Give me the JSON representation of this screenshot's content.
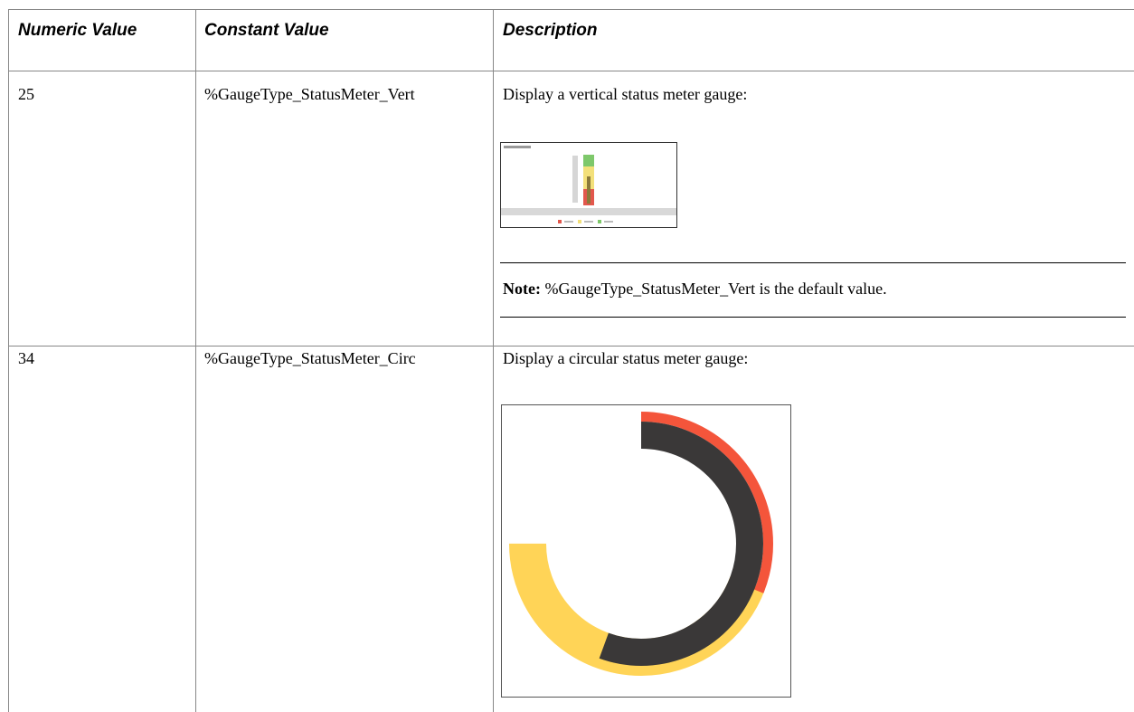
{
  "table": {
    "headers": [
      "Numeric Value",
      "Constant Value",
      "Description"
    ],
    "rows": [
      [
        25,
        "%GaugeType_StatusMeter_Vert",
        "Display a vertical status meter gauge:"
      ],
      [
        34,
        "%GaugeType_StatusMeter_Circ",
        "Display a circular status meter gauge:"
      ]
    ]
  },
  "note": {
    "label": "Note:",
    "text": "%GaugeType_StatusMeter_Vert is the default value."
  }
}
